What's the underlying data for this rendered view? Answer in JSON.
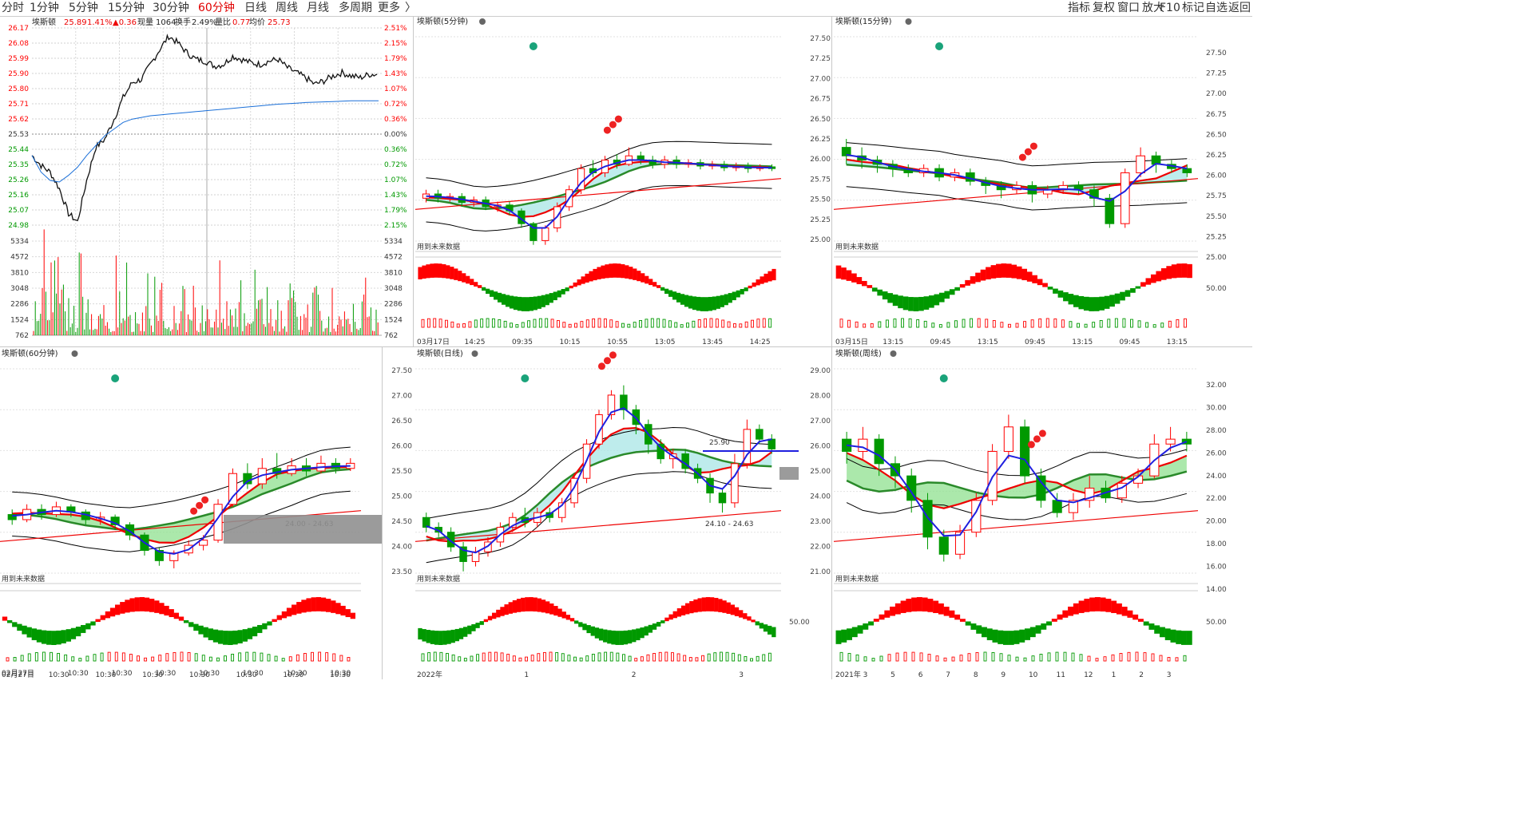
{
  "top_tabs": [
    "分时",
    "1分钟",
    "5分钟",
    "15分钟",
    "30分钟",
    "60分钟",
    "日线",
    "周线",
    "月线",
    "多周期",
    "更多"
  ],
  "more_arrow": "〉",
  "toolbar": [
    "指标",
    "复权",
    "窗口",
    "放大",
    "F10",
    "标记",
    "自选",
    "返回"
  ],
  "colors": {
    "up": "#ff0000",
    "down": "#009900",
    "avg": "#1a6fd8",
    "zigzag": "#1f1fdf",
    "grid": "#bbbbbb",
    "band_cyan": "#a8e6e6",
    "band_green": "#8fe08f",
    "gray_block": "#909090"
  },
  "chart_data": [
    {
      "id": "intraday",
      "type": "line",
      "header": {
        "name": "埃斯顿",
        "price": "25.89",
        "pct": "1.41%",
        "chg": "▲0.36",
        "vol_label": "现量",
        "vol": "1064",
        "turn_label": "换手",
        "turn": "2.49%",
        "ratio_label": "量比",
        "ratio": "0.77",
        "avg_label": "均价",
        "avg": "25.73"
      },
      "y_left": [
        "26.17",
        "26.08",
        "25.99",
        "25.90",
        "25.80",
        "25.71",
        "25.62",
        "25.53",
        "25.44",
        "25.35",
        "25.26",
        "25.16",
        "25.07",
        "24.98"
      ],
      "y_right": [
        "2.51%",
        "2.15%",
        "1.79%",
        "1.43%",
        "1.07%",
        "0.72%",
        "0.36%",
        "0.00%",
        "0.36%",
        "0.72%",
        "1.07%",
        "1.43%",
        "1.79%",
        "2.15%"
      ],
      "ylim": [
        24.98,
        26.17
      ],
      "price": [
        25.4,
        25.34,
        25.3,
        25.2,
        25.05,
        25.0,
        25.25,
        25.45,
        25.5,
        25.62,
        25.75,
        25.84,
        25.86,
        25.95,
        26.04,
        26.12,
        26.08,
        26.02,
        25.98,
        25.97,
        25.94,
        25.95,
        26.0,
        25.98,
        25.96,
        25.95,
        25.97,
        25.98,
        25.93,
        25.9,
        25.87,
        25.83,
        25.85,
        25.88,
        25.9,
        25.88,
        25.87,
        25.89,
        25.89
      ],
      "avg_line": [
        25.4,
        25.3,
        25.25,
        25.24,
        25.28,
        25.33,
        25.4,
        25.46,
        25.52,
        25.56,
        25.6,
        25.62,
        25.63,
        25.64,
        25.645,
        25.65,
        25.655,
        25.66,
        25.665,
        25.67,
        25.675,
        25.68,
        25.685,
        25.69,
        25.695,
        25.7,
        25.705,
        25.71,
        25.713,
        25.716,
        25.72,
        25.722,
        25.724,
        25.726,
        25.728,
        25.73,
        25.73,
        25.73,
        25.73
      ],
      "vol_axis": [
        "5334",
        "4572",
        "3810",
        "3048",
        "2286",
        "1524",
        "762"
      ],
      "x_labels": [
        "02月27日",
        "10:30",
        "10:30",
        "10:30",
        "10:30",
        "10:30",
        "10:30",
        "10:30"
      ]
    },
    {
      "id": "m5",
      "type": "candlestick",
      "title": "埃斯顿(5分钟)",
      "note": "用到未来数据",
      "ylim": [
        25.0,
        27.6
      ],
      "candles": [
        [
          25.6,
          25.65,
          25.7,
          25.55
        ],
        [
          25.65,
          25.6,
          25.7,
          25.55
        ],
        [
          25.6,
          25.62,
          25.66,
          25.56
        ],
        [
          25.62,
          25.55,
          25.66,
          25.5
        ],
        [
          25.55,
          25.58,
          25.62,
          25.5
        ],
        [
          25.58,
          25.5,
          25.62,
          25.46
        ],
        [
          25.5,
          25.52,
          25.56,
          25.44
        ],
        [
          25.52,
          25.45,
          25.56,
          25.4
        ],
        [
          25.45,
          25.3,
          25.48,
          25.25
        ],
        [
          25.3,
          25.1,
          25.32,
          25.05
        ],
        [
          25.1,
          25.25,
          25.28,
          25.05
        ],
        [
          25.25,
          25.5,
          25.55,
          25.2
        ],
        [
          25.5,
          25.7,
          25.75,
          25.45
        ],
        [
          25.7,
          25.95,
          26.0,
          25.65
        ],
        [
          25.95,
          25.9,
          26.05,
          25.85
        ],
        [
          25.9,
          26.05,
          26.1,
          25.85
        ],
        [
          26.05,
          26.0,
          26.12,
          25.95
        ],
        [
          26.0,
          26.1,
          26.2,
          25.98
        ],
        [
          26.1,
          26.05,
          26.15,
          26.0
        ],
        [
          26.05,
          26.0,
          26.1,
          25.95
        ],
        [
          26.0,
          26.05,
          26.1,
          25.95
        ],
        [
          26.05,
          26.0,
          26.1,
          25.95
        ],
        [
          26.0,
          26.02,
          26.06,
          25.96
        ],
        [
          26.02,
          25.98,
          26.06,
          25.94
        ],
        [
          25.98,
          26.0,
          26.04,
          25.94
        ],
        [
          26.0,
          25.96,
          26.04,
          25.92
        ],
        [
          25.96,
          25.98,
          26.02,
          25.92
        ],
        [
          25.98,
          25.95,
          26.02,
          25.9
        ],
        [
          25.95,
          25.97,
          26.0,
          25.92
        ],
        [
          25.97,
          25.95,
          26.0,
          25.92
        ]
      ],
      "ind_label": "",
      "x_labels": [
        "03月17日",
        "14:25",
        "09:35",
        "10:15",
        "10:55",
        "13:05",
        "13:45",
        "14:25"
      ]
    },
    {
      "id": "m15",
      "type": "candlestick",
      "title": "埃斯顿(15分钟)",
      "note": "用到未来数据",
      "y_left": [
        "27.50",
        "27.25",
        "27.00",
        "26.75",
        "26.50",
        "26.25",
        "26.00",
        "25.75",
        "25.50",
        "25.25",
        "25.00"
      ],
      "y_right": [
        "27.50",
        "27.25",
        "27.00",
        "26.75",
        "26.50",
        "26.25",
        "26.00",
        "25.75",
        "25.50",
        "25.25",
        "25.00"
      ],
      "ylim": [
        25.0,
        27.6
      ],
      "candles": [
        [
          26.2,
          26.1,
          26.3,
          26.0
        ],
        [
          26.1,
          26.05,
          26.2,
          25.95
        ],
        [
          26.05,
          26.0,
          26.1,
          25.9
        ],
        [
          26.0,
          25.95,
          26.05,
          25.85
        ],
        [
          25.95,
          25.9,
          26.0,
          25.85
        ],
        [
          25.9,
          25.95,
          26.0,
          25.85
        ],
        [
          25.95,
          25.85,
          26.0,
          25.8
        ],
        [
          25.85,
          25.9,
          25.95,
          25.8
        ],
        [
          25.9,
          25.8,
          25.95,
          25.75
        ],
        [
          25.8,
          25.75,
          25.85,
          25.65
        ],
        [
          25.75,
          25.7,
          25.8,
          25.6
        ],
        [
          25.7,
          25.75,
          25.8,
          25.65
        ],
        [
          25.75,
          25.65,
          25.8,
          25.55
        ],
        [
          25.65,
          25.7,
          25.75,
          25.6
        ],
        [
          25.7,
          25.75,
          25.8,
          25.65
        ],
        [
          25.75,
          25.7,
          25.8,
          25.65
        ],
        [
          25.7,
          25.6,
          25.75,
          25.5
        ],
        [
          25.6,
          25.3,
          25.65,
          25.25
        ],
        [
          25.3,
          25.9,
          25.95,
          25.25
        ],
        [
          25.9,
          26.1,
          26.2,
          25.85
        ],
        [
          26.1,
          26.0,
          26.15,
          25.9
        ],
        [
          26.0,
          25.95,
          26.05,
          25.9
        ],
        [
          25.95,
          25.9,
          26.0,
          25.85
        ]
      ],
      "ind_label": "50.00",
      "x_labels": [
        "03月15日",
        "13:15",
        "09:45",
        "13:15",
        "09:45",
        "13:15",
        "09:45",
        "13:15"
      ]
    },
    {
      "id": "m60",
      "type": "candlestick",
      "title": "埃斯顿(60分钟)",
      "note": "用到未来数据",
      "range_label": "24.00 - 24.63",
      "ylim": [
        23.3,
        27.6
      ],
      "candles": [
        [
          24.6,
          24.5,
          24.7,
          24.4
        ],
        [
          24.5,
          24.7,
          24.8,
          24.45
        ],
        [
          24.7,
          24.6,
          24.8,
          24.5
        ],
        [
          24.6,
          24.75,
          24.85,
          24.55
        ],
        [
          24.75,
          24.65,
          24.8,
          24.55
        ],
        [
          24.65,
          24.5,
          24.7,
          24.4
        ],
        [
          24.5,
          24.55,
          24.65,
          24.4
        ],
        [
          24.55,
          24.4,
          24.6,
          24.3
        ],
        [
          24.4,
          24.2,
          24.45,
          24.1
        ],
        [
          24.2,
          23.9,
          24.25,
          23.8
        ],
        [
          23.9,
          23.7,
          23.95,
          23.6
        ],
        [
          23.7,
          23.85,
          23.9,
          23.55
        ],
        [
          23.85,
          24.0,
          24.1,
          23.8
        ],
        [
          24.0,
          24.1,
          24.2,
          23.9
        ],
        [
          24.1,
          24.8,
          24.9,
          24.05
        ],
        [
          24.8,
          25.4,
          25.5,
          24.75
        ],
        [
          25.4,
          25.2,
          25.6,
          25.1
        ],
        [
          25.2,
          25.5,
          25.7,
          25.1
        ],
        [
          25.5,
          25.4,
          25.8,
          25.3
        ],
        [
          25.4,
          25.55,
          25.7,
          25.35
        ],
        [
          25.55,
          25.45,
          25.7,
          25.35
        ],
        [
          25.45,
          25.6,
          25.75,
          25.4
        ],
        [
          25.6,
          25.5,
          25.7,
          25.4
        ],
        [
          25.5,
          25.6,
          25.7,
          25.45
        ]
      ],
      "x_labels": [
        "02月27日",
        "10:30",
        "10:30",
        "10:30",
        "10:30",
        "10:30",
        "10:30",
        "10:30"
      ]
    },
    {
      "id": "daily",
      "type": "candlestick",
      "title": "埃斯顿(日线)",
      "note": "用到未来数据",
      "range_label": "24.10 - 24.63",
      "level_label": "25.90",
      "y_left": [
        "27.50",
        "27.00",
        "26.50",
        "26.00",
        "25.50",
        "25.00",
        "24.50",
        "24.00",
        "23.50"
      ],
      "ylim": [
        23.2,
        27.7
      ],
      "candles": [
        [
          24.5,
          24.3,
          24.6,
          24.2
        ],
        [
          24.3,
          24.2,
          24.4,
          24.1
        ],
        [
          24.2,
          23.9,
          24.3,
          23.8
        ],
        [
          23.9,
          23.6,
          24.0,
          23.4
        ],
        [
          23.6,
          23.8,
          23.9,
          23.5
        ],
        [
          23.8,
          24.0,
          24.1,
          23.7
        ],
        [
          24.0,
          24.3,
          24.4,
          23.9
        ],
        [
          24.3,
          24.5,
          24.6,
          24.2
        ],
        [
          24.5,
          24.4,
          24.7,
          24.3
        ],
        [
          24.4,
          24.6,
          24.7,
          24.3
        ],
        [
          24.6,
          24.5,
          24.7,
          24.4
        ],
        [
          24.5,
          24.8,
          24.9,
          24.4
        ],
        [
          24.8,
          25.3,
          25.4,
          24.7
        ],
        [
          25.3,
          26.0,
          26.1,
          25.2
        ],
        [
          26.0,
          26.6,
          26.7,
          25.9
        ],
        [
          26.6,
          27.0,
          27.1,
          26.5
        ],
        [
          27.0,
          26.7,
          27.2,
          26.5
        ],
        [
          26.7,
          26.4,
          26.8,
          26.2
        ],
        [
          26.4,
          26.0,
          26.5,
          25.8
        ],
        [
          26.0,
          25.7,
          26.1,
          25.6
        ],
        [
          25.7,
          25.8,
          25.9,
          25.5
        ],
        [
          25.8,
          25.5,
          25.9,
          25.4
        ],
        [
          25.5,
          25.3,
          25.6,
          25.2
        ],
        [
          25.3,
          25.0,
          25.4,
          24.8
        ],
        [
          25.0,
          24.8,
          25.1,
          24.6
        ],
        [
          24.8,
          25.6,
          25.8,
          24.7
        ],
        [
          25.6,
          26.3,
          26.5,
          25.5
        ],
        [
          26.3,
          26.1,
          26.4,
          26.0
        ],
        [
          26.1,
          25.9,
          26.2,
          25.8
        ]
      ],
      "ind_label": "50.00",
      "x_labels": [
        "2022年",
        "1",
        "2",
        "3"
      ]
    },
    {
      "id": "weekly",
      "type": "candlestick",
      "title": "埃斯顿(周线)",
      "note": "用到未来数据",
      "y_left": [
        "29.00",
        "28.00",
        "27.00",
        "26.00",
        "25.00",
        "24.00",
        "23.00",
        "22.00",
        "21.00"
      ],
      "y_right": [
        "32.00",
        "30.00",
        "28.00",
        "26.00",
        "24.00",
        "22.00",
        "20.00",
        "18.00",
        "16.00",
        "14.00"
      ],
      "ylim": [
        20.2,
        29.2
      ],
      "candles": [
        [
          26.0,
          25.5,
          26.3,
          25.0
        ],
        [
          25.5,
          26.0,
          26.5,
          25.2
        ],
        [
          26.0,
          25.0,
          26.2,
          24.5
        ],
        [
          25.0,
          24.5,
          25.3,
          24.0
        ],
        [
          24.5,
          23.5,
          24.8,
          23.0
        ],
        [
          23.5,
          22.0,
          23.8,
          21.5
        ],
        [
          22.0,
          21.3,
          22.3,
          21.0
        ],
        [
          21.3,
          22.2,
          22.5,
          21.1
        ],
        [
          22.2,
          23.5,
          23.8,
          22.0
        ],
        [
          23.5,
          25.5,
          25.8,
          23.3
        ],
        [
          25.5,
          26.5,
          27.0,
          25.2
        ],
        [
          26.5,
          24.5,
          26.8,
          24.2
        ],
        [
          24.5,
          23.5,
          24.8,
          23.2
        ],
        [
          23.5,
          23.0,
          23.8,
          22.8
        ],
        [
          23.0,
          23.5,
          23.8,
          22.7
        ],
        [
          23.5,
          24.0,
          24.5,
          23.2
        ],
        [
          24.0,
          23.6,
          24.3,
          23.4
        ],
        [
          23.6,
          24.2,
          24.5,
          23.4
        ],
        [
          24.2,
          24.5,
          24.8,
          24.0
        ],
        [
          24.5,
          25.8,
          26.2,
          24.4
        ],
        [
          25.8,
          26.0,
          26.5,
          25.5
        ],
        [
          26.0,
          25.8,
          26.3,
          25.5
        ]
      ],
      "ind_label": "50.00",
      "x_labels": [
        "2021年",
        "3",
        "5",
        "6",
        "7",
        "8",
        "9",
        "10",
        "11",
        "12",
        "1",
        "2",
        "3"
      ]
    }
  ]
}
